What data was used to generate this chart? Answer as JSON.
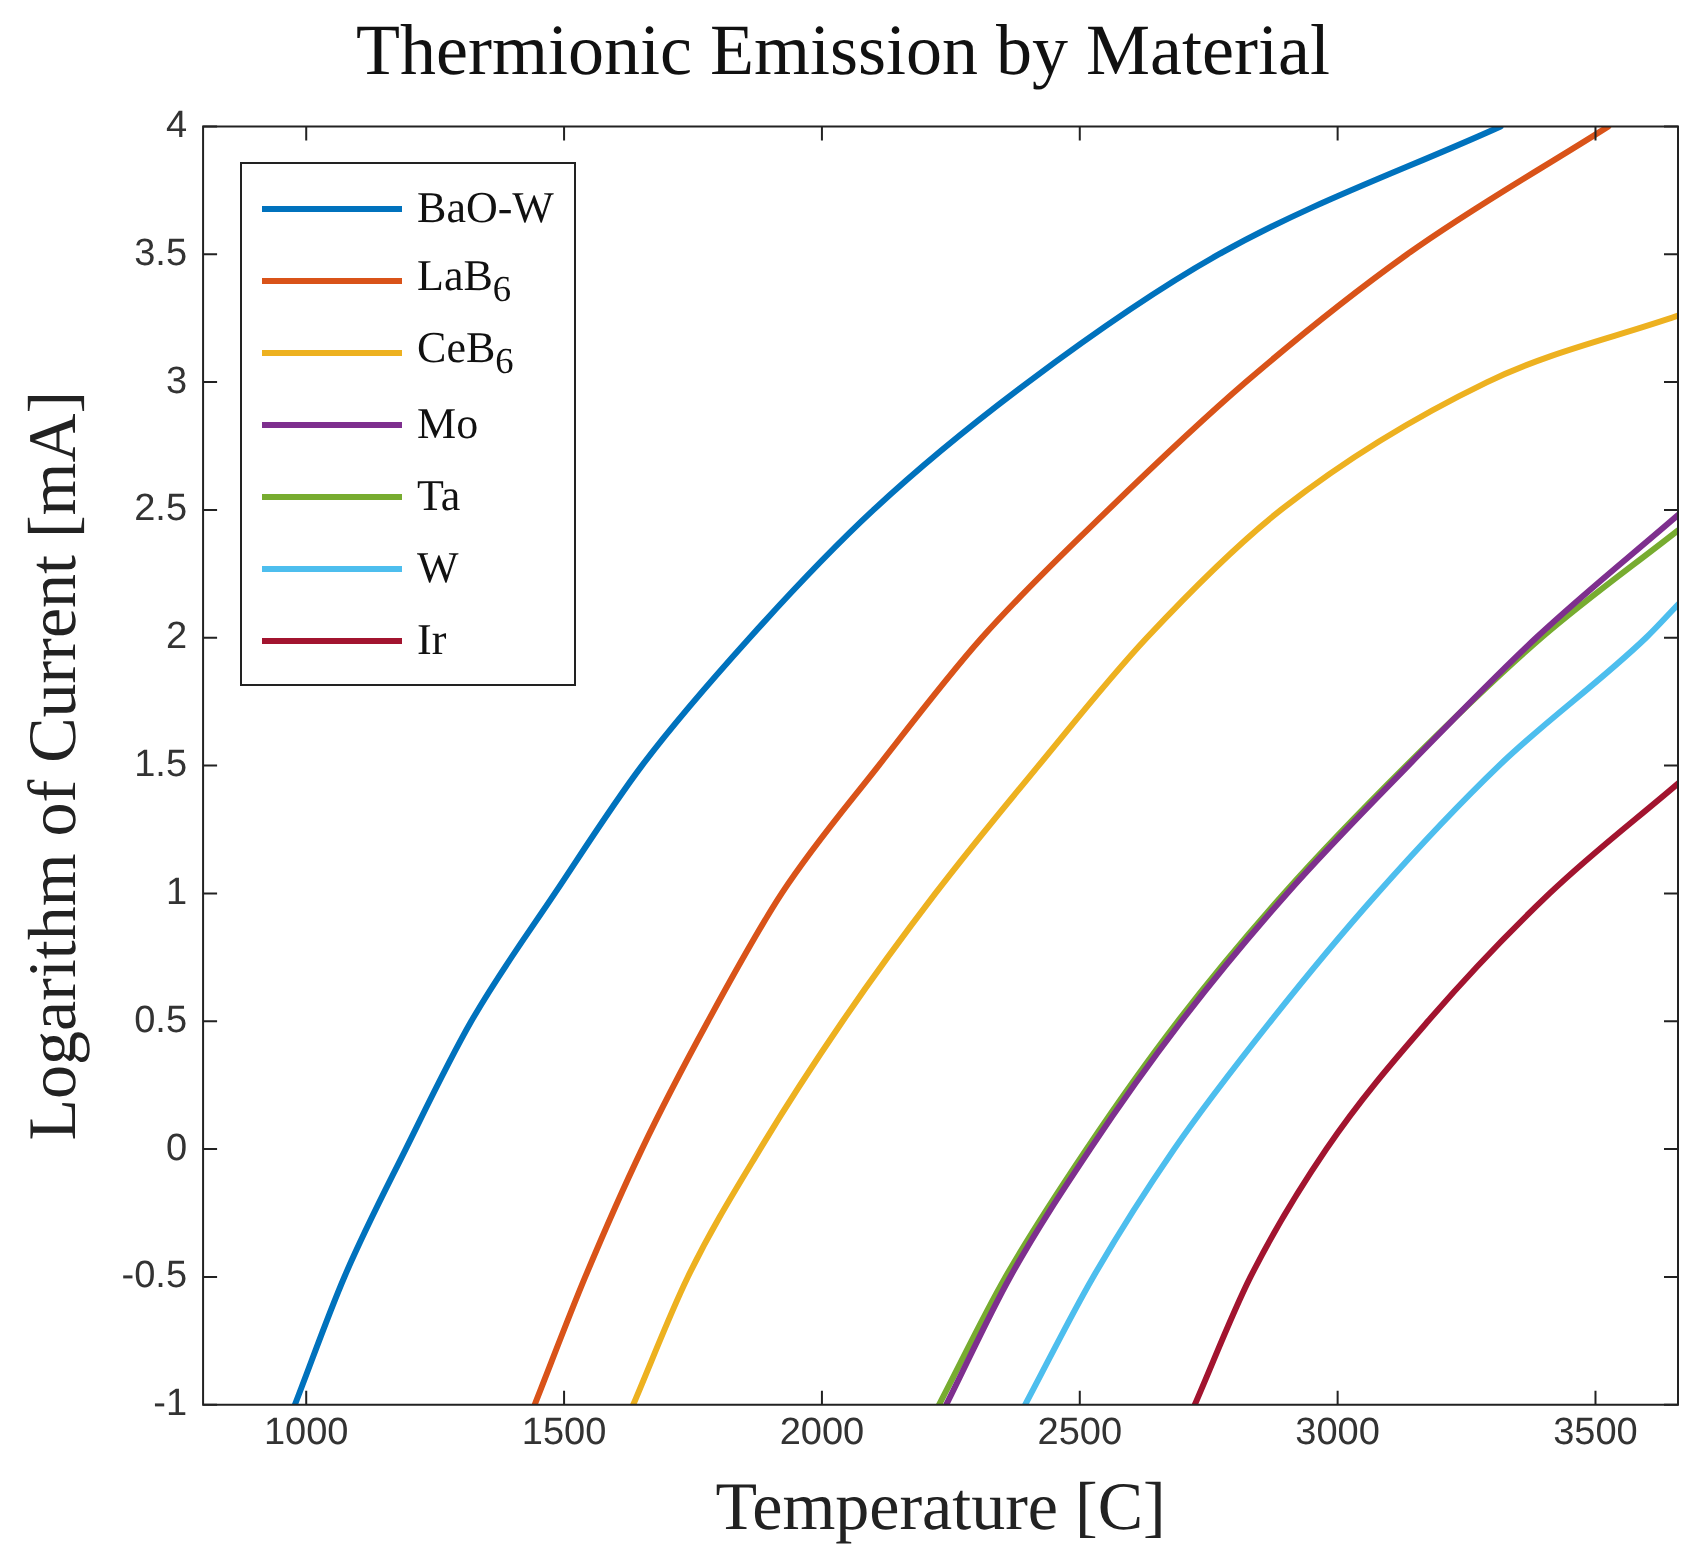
{
  "chart_data": {
    "type": "line",
    "title": "Thermionic Emission by Material",
    "xlabel": "Temperature [C]",
    "ylabel": "Logarithm of Current [mA]",
    "xlim": [
      800,
      3660
    ],
    "ylim": [
      -1,
      4
    ],
    "xticks": [
      1000,
      1500,
      2000,
      2500,
      3000,
      3500
    ],
    "yticks": [
      -1,
      -0.5,
      0,
      0.5,
      1,
      1.5,
      2,
      2.5,
      3,
      3.5,
      4
    ],
    "grid": false,
    "legend": "top left",
    "marker": "none",
    "line_style": "solid",
    "series": [
      {
        "name": "BaO-W",
        "color": "#0072bd",
        "x": [
          978,
          1074,
          1193,
          1320,
          1482,
          1651,
          1860,
          2100,
          2400,
          2770,
          3316
        ],
        "values": [
          -1,
          -0.5,
          0,
          0.5,
          1,
          1.5,
          2,
          2.5,
          3,
          3.5,
          4
        ]
      },
      {
        "name": "LaB$_{6}$",
        "color": "#d95319",
        "x": [
          1443,
          1541,
          1651,
          1779,
          1922,
          2110,
          2310,
          2555,
          2822,
          3135,
          3525
        ],
        "values": [
          -1,
          -0.5,
          0,
          0.5,
          1,
          1.5,
          2,
          2.5,
          3,
          3.5,
          4
        ]
      },
      {
        "name": "CeB$_{6}$",
        "color": "#edb120",
        "x": [
          1634,
          1740,
          1880,
          2040,
          2220,
          2420,
          2630,
          2890,
          3290,
          3660
        ],
        "values": [
          -1,
          -0.5,
          0,
          0.5,
          1,
          1.5,
          2,
          2.5,
          3,
          3.26
        ]
      },
      {
        "name": "Mo",
        "color": "#7e2f8e",
        "x": [
          2241,
          2365,
          2520,
          2697,
          2902,
          3137,
          3385,
          3660
        ],
        "values": [
          -1,
          -0.5,
          0,
          0.5,
          1,
          1.5,
          2,
          2.48
        ]
      },
      {
        "name": "Ta",
        "color": "#77ac30",
        "x": [
          2227,
          2356,
          2513,
          2690,
          2896,
          3133,
          3395,
          3660
        ],
        "values": [
          -1,
          -0.5,
          0,
          0.5,
          1,
          1.5,
          2,
          2.42
        ]
      },
      {
        "name": "W",
        "color": "#4dbeee",
        "x": [
          2394,
          2526,
          2683,
          2870,
          3077,
          3313,
          3598,
          3660
        ],
        "values": [
          -1,
          -0.5,
          0,
          0.5,
          1,
          1.5,
          2,
          2.13
        ]
      },
      {
        "name": "Ir",
        "color": "#a2142f",
        "x": [
          2723,
          2831,
          2978,
          3175,
          3411,
          3660
        ],
        "values": [
          -1,
          -0.5,
          0,
          0.5,
          1,
          1.43
        ]
      }
    ]
  }
}
